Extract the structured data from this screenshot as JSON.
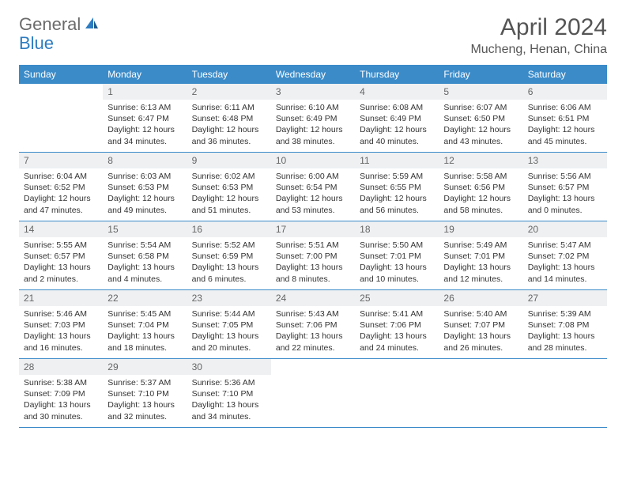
{
  "brand": {
    "part1": "General",
    "part2": "Blue"
  },
  "title": "April 2024",
  "location": "Mucheng, Henan, China",
  "colors": {
    "header_bg": "#3b8bc9",
    "header_text": "#ffffff",
    "cell_head_bg": "#eef0f2",
    "divider": "#3b8bc9",
    "brand_gray": "#6b6b6b",
    "brand_blue": "#2d7cc1"
  },
  "dayNames": [
    "Sunday",
    "Monday",
    "Tuesday",
    "Wednesday",
    "Thursday",
    "Friday",
    "Saturday"
  ],
  "weeks": [
    [
      {
        "date": "",
        "sunrise": "",
        "sunset": "",
        "daylight": ""
      },
      {
        "date": "1",
        "sunrise": "Sunrise: 6:13 AM",
        "sunset": "Sunset: 6:47 PM",
        "daylight": "Daylight: 12 hours and 34 minutes."
      },
      {
        "date": "2",
        "sunrise": "Sunrise: 6:11 AM",
        "sunset": "Sunset: 6:48 PM",
        "daylight": "Daylight: 12 hours and 36 minutes."
      },
      {
        "date": "3",
        "sunrise": "Sunrise: 6:10 AM",
        "sunset": "Sunset: 6:49 PM",
        "daylight": "Daylight: 12 hours and 38 minutes."
      },
      {
        "date": "4",
        "sunrise": "Sunrise: 6:08 AM",
        "sunset": "Sunset: 6:49 PM",
        "daylight": "Daylight: 12 hours and 40 minutes."
      },
      {
        "date": "5",
        "sunrise": "Sunrise: 6:07 AM",
        "sunset": "Sunset: 6:50 PM",
        "daylight": "Daylight: 12 hours and 43 minutes."
      },
      {
        "date": "6",
        "sunrise": "Sunrise: 6:06 AM",
        "sunset": "Sunset: 6:51 PM",
        "daylight": "Daylight: 12 hours and 45 minutes."
      }
    ],
    [
      {
        "date": "7",
        "sunrise": "Sunrise: 6:04 AM",
        "sunset": "Sunset: 6:52 PM",
        "daylight": "Daylight: 12 hours and 47 minutes."
      },
      {
        "date": "8",
        "sunrise": "Sunrise: 6:03 AM",
        "sunset": "Sunset: 6:53 PM",
        "daylight": "Daylight: 12 hours and 49 minutes."
      },
      {
        "date": "9",
        "sunrise": "Sunrise: 6:02 AM",
        "sunset": "Sunset: 6:53 PM",
        "daylight": "Daylight: 12 hours and 51 minutes."
      },
      {
        "date": "10",
        "sunrise": "Sunrise: 6:00 AM",
        "sunset": "Sunset: 6:54 PM",
        "daylight": "Daylight: 12 hours and 53 minutes."
      },
      {
        "date": "11",
        "sunrise": "Sunrise: 5:59 AM",
        "sunset": "Sunset: 6:55 PM",
        "daylight": "Daylight: 12 hours and 56 minutes."
      },
      {
        "date": "12",
        "sunrise": "Sunrise: 5:58 AM",
        "sunset": "Sunset: 6:56 PM",
        "daylight": "Daylight: 12 hours and 58 minutes."
      },
      {
        "date": "13",
        "sunrise": "Sunrise: 5:56 AM",
        "sunset": "Sunset: 6:57 PM",
        "daylight": "Daylight: 13 hours and 0 minutes."
      }
    ],
    [
      {
        "date": "14",
        "sunrise": "Sunrise: 5:55 AM",
        "sunset": "Sunset: 6:57 PM",
        "daylight": "Daylight: 13 hours and 2 minutes."
      },
      {
        "date": "15",
        "sunrise": "Sunrise: 5:54 AM",
        "sunset": "Sunset: 6:58 PM",
        "daylight": "Daylight: 13 hours and 4 minutes."
      },
      {
        "date": "16",
        "sunrise": "Sunrise: 5:52 AM",
        "sunset": "Sunset: 6:59 PM",
        "daylight": "Daylight: 13 hours and 6 minutes."
      },
      {
        "date": "17",
        "sunrise": "Sunrise: 5:51 AM",
        "sunset": "Sunset: 7:00 PM",
        "daylight": "Daylight: 13 hours and 8 minutes."
      },
      {
        "date": "18",
        "sunrise": "Sunrise: 5:50 AM",
        "sunset": "Sunset: 7:01 PM",
        "daylight": "Daylight: 13 hours and 10 minutes."
      },
      {
        "date": "19",
        "sunrise": "Sunrise: 5:49 AM",
        "sunset": "Sunset: 7:01 PM",
        "daylight": "Daylight: 13 hours and 12 minutes."
      },
      {
        "date": "20",
        "sunrise": "Sunrise: 5:47 AM",
        "sunset": "Sunset: 7:02 PM",
        "daylight": "Daylight: 13 hours and 14 minutes."
      }
    ],
    [
      {
        "date": "21",
        "sunrise": "Sunrise: 5:46 AM",
        "sunset": "Sunset: 7:03 PM",
        "daylight": "Daylight: 13 hours and 16 minutes."
      },
      {
        "date": "22",
        "sunrise": "Sunrise: 5:45 AM",
        "sunset": "Sunset: 7:04 PM",
        "daylight": "Daylight: 13 hours and 18 minutes."
      },
      {
        "date": "23",
        "sunrise": "Sunrise: 5:44 AM",
        "sunset": "Sunset: 7:05 PM",
        "daylight": "Daylight: 13 hours and 20 minutes."
      },
      {
        "date": "24",
        "sunrise": "Sunrise: 5:43 AM",
        "sunset": "Sunset: 7:06 PM",
        "daylight": "Daylight: 13 hours and 22 minutes."
      },
      {
        "date": "25",
        "sunrise": "Sunrise: 5:41 AM",
        "sunset": "Sunset: 7:06 PM",
        "daylight": "Daylight: 13 hours and 24 minutes."
      },
      {
        "date": "26",
        "sunrise": "Sunrise: 5:40 AM",
        "sunset": "Sunset: 7:07 PM",
        "daylight": "Daylight: 13 hours and 26 minutes."
      },
      {
        "date": "27",
        "sunrise": "Sunrise: 5:39 AM",
        "sunset": "Sunset: 7:08 PM",
        "daylight": "Daylight: 13 hours and 28 minutes."
      }
    ],
    [
      {
        "date": "28",
        "sunrise": "Sunrise: 5:38 AM",
        "sunset": "Sunset: 7:09 PM",
        "daylight": "Daylight: 13 hours and 30 minutes."
      },
      {
        "date": "29",
        "sunrise": "Sunrise: 5:37 AM",
        "sunset": "Sunset: 7:10 PM",
        "daylight": "Daylight: 13 hours and 32 minutes."
      },
      {
        "date": "30",
        "sunrise": "Sunrise: 5:36 AM",
        "sunset": "Sunset: 7:10 PM",
        "daylight": "Daylight: 13 hours and 34 minutes."
      },
      {
        "date": "",
        "sunrise": "",
        "sunset": "",
        "daylight": ""
      },
      {
        "date": "",
        "sunrise": "",
        "sunset": "",
        "daylight": ""
      },
      {
        "date": "",
        "sunrise": "",
        "sunset": "",
        "daylight": ""
      },
      {
        "date": "",
        "sunrise": "",
        "sunset": "",
        "daylight": ""
      }
    ]
  ]
}
